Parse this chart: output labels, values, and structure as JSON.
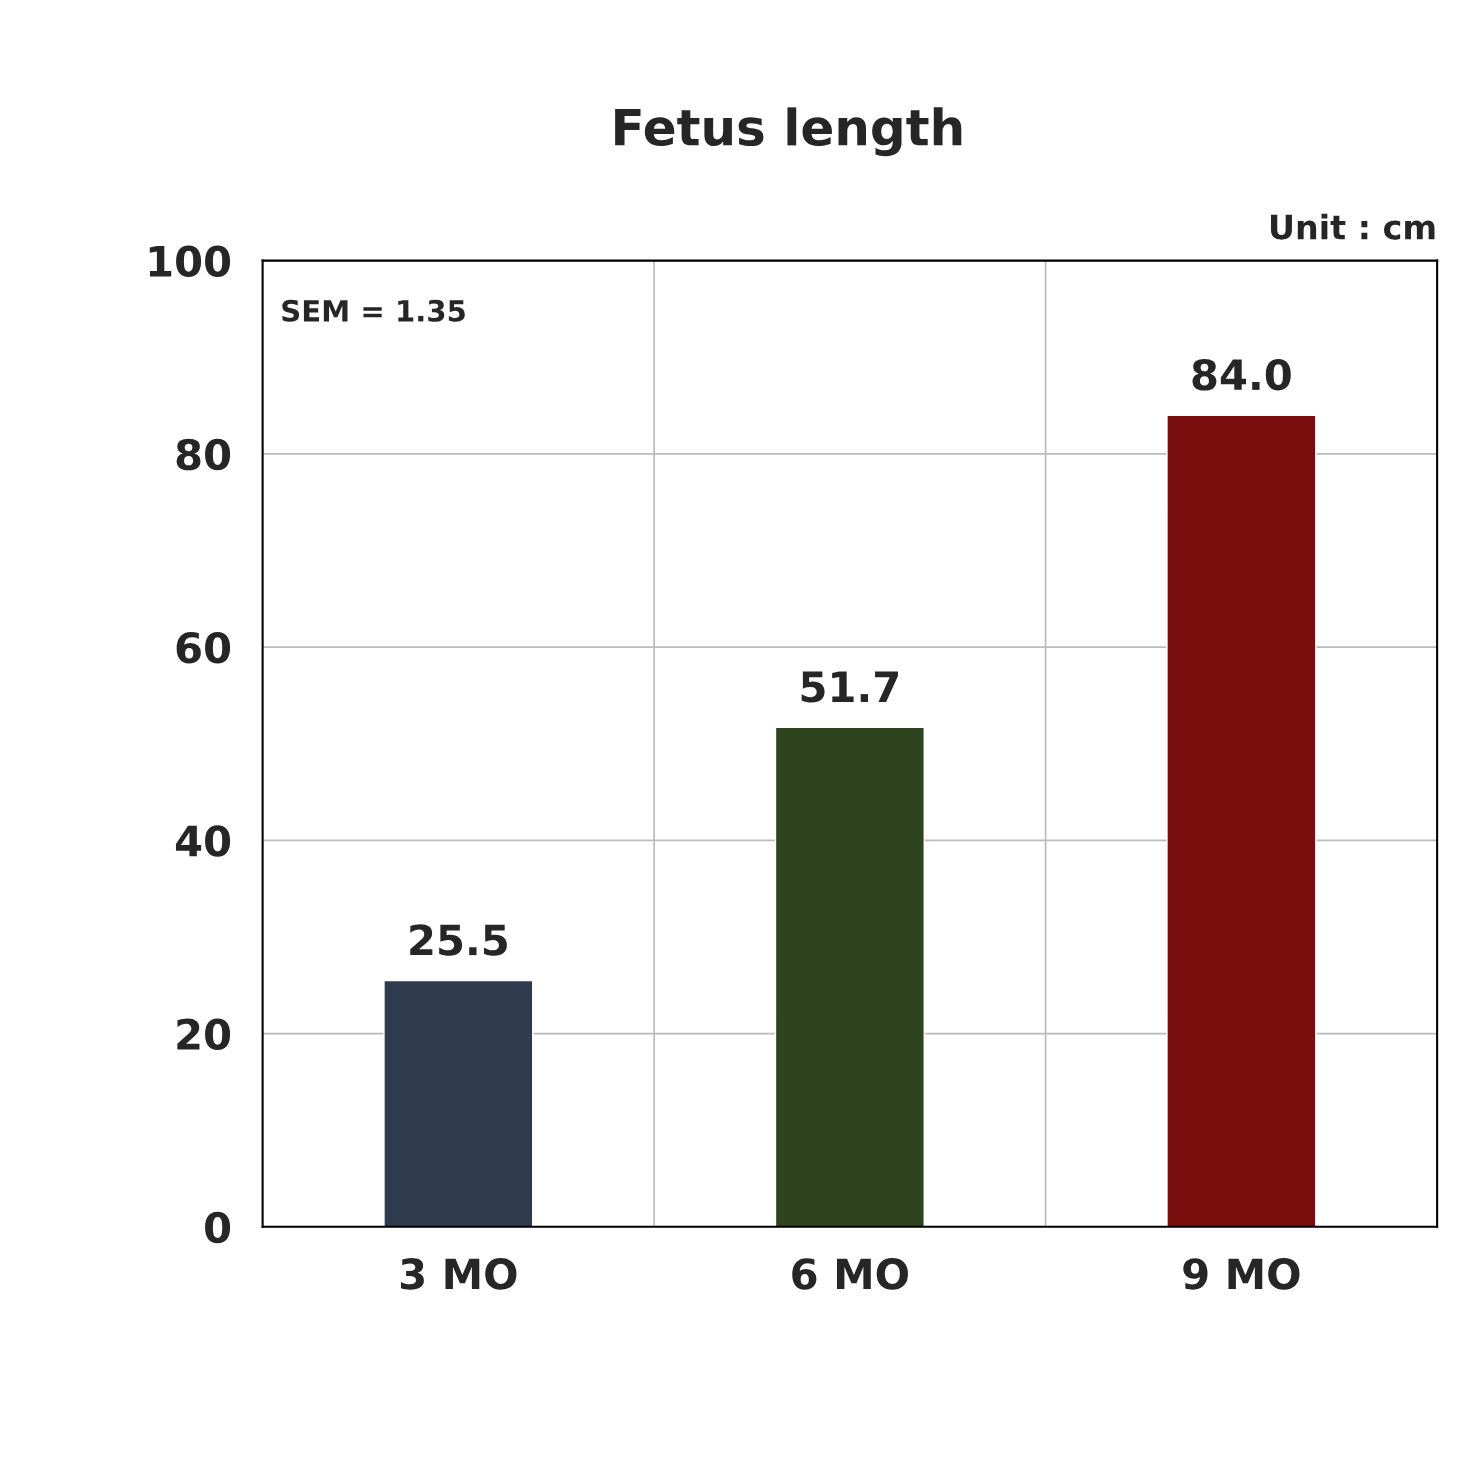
{
  "chart_data": {
    "type": "bar",
    "title": "Fetus length",
    "categories": [
      "3 MO",
      "6 MO",
      "9 MO"
    ],
    "values": [
      25.5,
      51.7,
      84.0
    ],
    "colors": [
      "#2f3b4e",
      "#2e441f",
      "#7a0d0d"
    ],
    "value_labels": [
      "25.5",
      "51.7",
      "84.0"
    ],
    "ylim": [
      0,
      100
    ],
    "yticks": [
      0,
      20,
      40,
      60,
      80,
      100
    ],
    "grid": true,
    "annotations": [
      "SEM = 1.35",
      "Unit : cm"
    ]
  }
}
